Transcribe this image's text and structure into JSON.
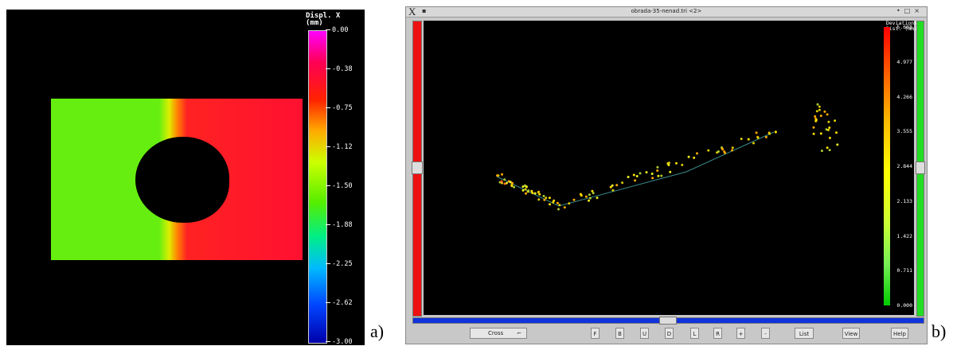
{
  "panel_a": {
    "colorbar": {
      "title_line1": "Displ. X",
      "title_line2": "(mm)",
      "ticks": [
        "0.00",
        "-0.38",
        "-0.75",
        "-1.12",
        "-1.50",
        "-1.88",
        "-2.25",
        "-2.62",
        "-3.00"
      ]
    },
    "label": "a)"
  },
  "panel_b": {
    "window_title": "obrada-35-nenad.tri <2>",
    "colorbar": {
      "title_line1": "Deviations",
      "title_line2": "Dist. (mm)",
      "ticks": [
        "5.688",
        "4.977",
        "4.266",
        "3.555",
        "2.844",
        "2.133",
        "1.422",
        "0.711",
        "0.000"
      ]
    },
    "toolbar": {
      "mode_value": "Cross",
      "buttons": [
        "F",
        "B",
        "U",
        "D",
        "L",
        "R",
        "+",
        "-",
        "List",
        "View",
        "Help"
      ]
    },
    "label": "b)"
  }
}
